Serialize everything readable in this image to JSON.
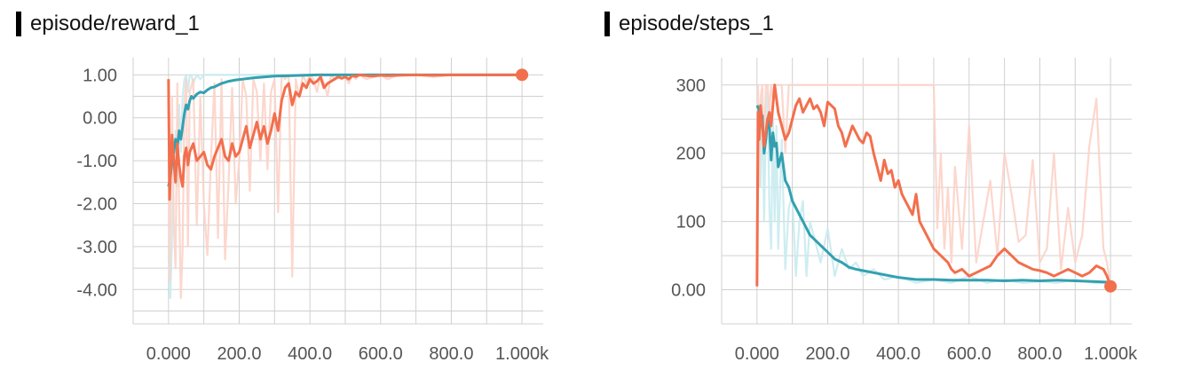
{
  "colors": {
    "orange": "#F26F4D",
    "orange_raw": "#FCD3C8",
    "teal": "#33A0B0",
    "teal_raw": "#C9EBEF",
    "grid": "#D0D0D0",
    "axis_text": "#555555"
  },
  "chart_data": [
    {
      "type": "line",
      "title": "episode/reward_1",
      "xlabel": "",
      "ylabel": "",
      "xlim": [
        -100,
        1060
      ],
      "ylim": [
        -4.8,
        1.4
      ],
      "x_ticks": [
        0,
        200,
        400,
        600,
        800,
        1000
      ],
      "x_tick_labels": [
        "0.000",
        "200.0",
        "400.0",
        "600.0",
        "800.0",
        "1.000k"
      ],
      "y_ticks": [
        1,
        0,
        -1,
        -2,
        -3,
        -4
      ],
      "y_tick_labels": [
        "1.00",
        "0.00",
        "-1.00",
        "-2.00",
        "-3.00",
        "-4.00"
      ],
      "grid": true,
      "legend": "none",
      "end_marker": {
        "x": 1000,
        "y": 1.0,
        "series": "orange"
      },
      "series": [
        {
          "color_key": "teal",
          "raw_color_key": "teal_raw",
          "x": [
            0,
            5,
            10,
            15,
            20,
            25,
            30,
            35,
            40,
            45,
            50,
            55,
            60,
            65,
            70,
            80,
            90,
            100,
            110,
            120,
            130,
            150,
            170,
            190,
            210,
            240,
            270,
            300,
            340,
            380,
            420,
            460,
            520,
            600,
            700,
            800,
            900,
            1000
          ],
          "y": [
            -1.6,
            -1.4,
            -1.0,
            -0.8,
            -0.5,
            -0.7,
            -0.3,
            -0.5,
            -0.2,
            0.1,
            0.3,
            0.2,
            0.4,
            0.5,
            0.45,
            0.55,
            0.6,
            0.58,
            0.65,
            0.7,
            0.72,
            0.8,
            0.85,
            0.88,
            0.9,
            0.93,
            0.95,
            0.97,
            0.98,
            0.99,
            1.0,
            1.0,
            1.0,
            1.0,
            1.0,
            1.0,
            1.0,
            1.0
          ],
          "raw_y": [
            -3.2,
            -4.2,
            -2.8,
            -1.0,
            -0.3,
            -1.6,
            0.3,
            -0.8,
            0.5,
            0.9,
            1.0,
            0.6,
            1.0,
            1.0,
            0.8,
            1.0,
            0.9,
            1.0,
            1.0,
            1.0,
            1.0,
            1.0,
            1.0,
            1.0,
            1.0,
            1.0,
            1.0,
            1.0,
            1.0,
            1.0,
            1.0,
            1.0,
            1.0,
            1.0,
            1.0,
            1.0,
            1.0,
            1.0
          ]
        },
        {
          "color_key": "orange",
          "raw_color_key": "orange_raw",
          "x": [
            0,
            3,
            6,
            10,
            15,
            20,
            25,
            30,
            35,
            40,
            45,
            50,
            55,
            60,
            70,
            80,
            90,
            100,
            110,
            120,
            130,
            140,
            150,
            160,
            170,
            180,
            190,
            200,
            210,
            220,
            230,
            240,
            250,
            260,
            270,
            280,
            290,
            300,
            310,
            320,
            330,
            340,
            350,
            360,
            370,
            380,
            390,
            400,
            410,
            420,
            430,
            440,
            450,
            460,
            470,
            480,
            490,
            500,
            510,
            520,
            530,
            540,
            560,
            580,
            600,
            620,
            650,
            700,
            750,
            800,
            850,
            900,
            950,
            1000
          ],
          "y": [
            0.9,
            -1.9,
            -1.2,
            -0.4,
            -1.0,
            -1.5,
            -0.6,
            -1.1,
            -1.4,
            -1.6,
            -0.9,
            -0.7,
            -1.1,
            -0.8,
            -0.6,
            -1.0,
            -0.9,
            -0.8,
            -1.1,
            -1.2,
            -0.9,
            -0.7,
            -0.5,
            -0.9,
            -1.0,
            -0.6,
            -0.9,
            -0.8,
            -0.5,
            -0.2,
            -0.7,
            -0.4,
            -0.1,
            -0.5,
            -0.2,
            -0.6,
            -0.3,
            0.1,
            -0.3,
            0.4,
            0.7,
            0.8,
            0.3,
            0.6,
            0.5,
            0.8,
            0.7,
            0.9,
            0.8,
            0.85,
            0.95,
            0.7,
            0.8,
            0.85,
            0.9,
            0.95,
            0.92,
            0.95,
            0.9,
            0.98,
            0.96,
            1.0,
            0.98,
            0.97,
            0.99,
            0.98,
            0.99,
            1.0,
            0.99,
            1.0,
            1.0,
            1.0,
            1.0,
            1.0
          ],
          "raw_y": [
            0.9,
            -3.8,
            -2.0,
            0.5,
            -2.5,
            -3.5,
            0.8,
            -2.0,
            -4.2,
            -3.0,
            0.3,
            0.9,
            -3.0,
            0.6,
            0.9,
            -2.5,
            0.5,
            -2.0,
            -3.2,
            -1.0,
            0.8,
            -2.8,
            0.9,
            -3.3,
            -1.5,
            0.7,
            -2.0,
            -1.0,
            0.9,
            0.5,
            -1.7,
            0.9,
            0.6,
            -1.0,
            0.8,
            -1.2,
            0.6,
            0.9,
            -2.2,
            1.0,
            0.9,
            1.0,
            -3.7,
            0.9,
            0.5,
            1.0,
            0.8,
            1.0,
            0.9,
            0.6,
            1.0,
            0.8,
            0.5,
            1.0,
            0.9,
            1.0,
            0.9,
            0.95,
            0.8,
            1.0,
            0.9,
            1.0,
            0.9,
            0.95,
            1.0,
            0.9,
            1.0,
            1.0,
            0.95,
            1.0,
            1.0,
            1.0,
            1.0,
            1.0
          ]
        }
      ]
    },
    {
      "type": "line",
      "title": "episode/steps_1",
      "xlabel": "",
      "ylabel": "",
      "xlim": [
        -100,
        1060
      ],
      "ylim": [
        -50,
        340
      ],
      "x_ticks": [
        0,
        200,
        400,
        600,
        800,
        1000
      ],
      "x_tick_labels": [
        "0.000",
        "200.0",
        "400.0",
        "600.0",
        "800.0",
        "1.000k"
      ],
      "y_ticks": [
        300,
        200,
        100,
        0
      ],
      "y_tick_labels": [
        "300",
        "200",
        "100",
        "0.00"
      ],
      "grid": true,
      "legend": "none",
      "end_marker": {
        "x": 1000,
        "y": 5,
        "series": "orange"
      },
      "series": [
        {
          "color_key": "teal",
          "raw_color_key": "teal_raw",
          "x": [
            0,
            5,
            10,
            15,
            20,
            25,
            30,
            35,
            40,
            45,
            50,
            55,
            60,
            70,
            80,
            90,
            100,
            110,
            120,
            130,
            140,
            150,
            160,
            180,
            200,
            220,
            240,
            260,
            280,
            300,
            330,
            360,
            400,
            450,
            500,
            550,
            600,
            650,
            700,
            750,
            800,
            850,
            900,
            950,
            1000
          ],
          "y": [
            270,
            265,
            240,
            255,
            200,
            220,
            250,
            240,
            190,
            230,
            210,
            215,
            180,
            200,
            160,
            150,
            130,
            120,
            110,
            100,
            90,
            80,
            75,
            65,
            55,
            45,
            40,
            33,
            30,
            28,
            25,
            22,
            18,
            15,
            15,
            14,
            14,
            14,
            13,
            14,
            13,
            14,
            13,
            12,
            11
          ],
          "raw_y": [
            280,
            250,
            150,
            280,
            100,
            240,
            290,
            120,
            60,
            250,
            100,
            240,
            60,
            220,
            30,
            120,
            140,
            20,
            100,
            130,
            20,
            100,
            80,
            40,
            90,
            20,
            60,
            30,
            40,
            20,
            30,
            15,
            20,
            10,
            15,
            10,
            20,
            10,
            15,
            10,
            12,
            10,
            15,
            10,
            10
          ]
        },
        {
          "color_key": "orange",
          "raw_color_key": "orange_raw",
          "x": [
            0,
            3,
            6,
            10,
            15,
            20,
            25,
            30,
            35,
            40,
            45,
            50,
            55,
            60,
            70,
            80,
            90,
            100,
            110,
            120,
            130,
            140,
            150,
            160,
            170,
            180,
            190,
            200,
            210,
            220,
            230,
            240,
            250,
            260,
            270,
            280,
            290,
            300,
            310,
            320,
            330,
            340,
            350,
            360,
            370,
            380,
            390,
            400,
            410,
            420,
            430,
            440,
            450,
            460,
            470,
            480,
            490,
            500,
            510,
            520,
            530,
            540,
            550,
            560,
            580,
            600,
            620,
            640,
            660,
            680,
            700,
            720,
            740,
            760,
            780,
            800,
            820,
            840,
            860,
            880,
            900,
            920,
            940,
            960,
            980,
            990,
            1000
          ],
          "y": [
            5,
            260,
            220,
            270,
            240,
            210,
            230,
            250,
            260,
            240,
            270,
            300,
            280,
            260,
            240,
            220,
            230,
            250,
            270,
            280,
            260,
            270,
            280,
            265,
            270,
            260,
            240,
            275,
            270,
            265,
            240,
            230,
            210,
            225,
            240,
            230,
            220,
            215,
            230,
            225,
            200,
            180,
            160,
            190,
            170,
            175,
            150,
            160,
            140,
            130,
            120,
            110,
            140,
            100,
            90,
            80,
            70,
            60,
            55,
            50,
            45,
            40,
            30,
            25,
            30,
            20,
            25,
            30,
            35,
            50,
            60,
            50,
            40,
            35,
            30,
            28,
            25,
            20,
            25,
            30,
            25,
            20,
            25,
            35,
            30,
            20,
            5
          ],
          "raw_y": [
            5,
            300,
            150,
            280,
            300,
            200,
            300,
            300,
            260,
            300,
            280,
            300,
            300,
            300,
            300,
            200,
            300,
            300,
            300,
            300,
            300,
            300,
            300,
            300,
            300,
            300,
            300,
            300,
            300,
            300,
            300,
            300,
            300,
            300,
            300,
            300,
            300,
            300,
            300,
            300,
            300,
            300,
            300,
            300,
            300,
            300,
            300,
            300,
            300,
            300,
            300,
            300,
            300,
            300,
            300,
            300,
            300,
            300,
            90,
            200,
            60,
            150,
            40,
            180,
            60,
            240,
            40,
            100,
            160,
            50,
            200,
            140,
            70,
            80,
            190,
            40,
            60,
            200,
            30,
            120,
            40,
            80,
            210,
            280,
            60,
            40,
            5
          ]
        }
      ]
    }
  ]
}
